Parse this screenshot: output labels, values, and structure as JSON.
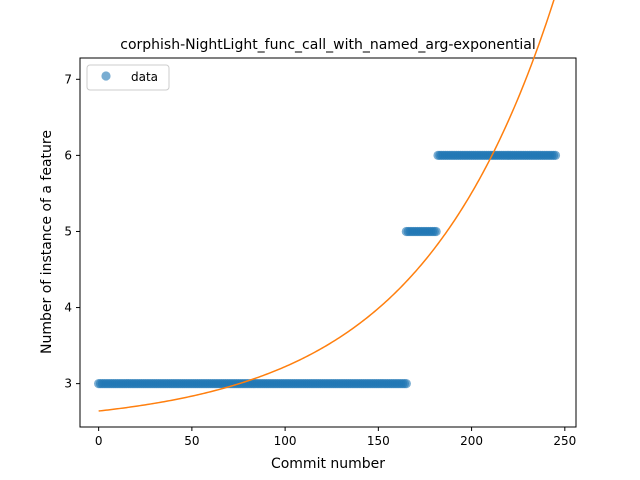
{
  "chart_data": {
    "type": "scatter",
    "title": "corphish-NightLight_func_call_with_named_arg-exponential",
    "xlabel": "Commit number",
    "ylabel": "Number of instance of a feature",
    "xlim": [
      -10,
      256
    ],
    "ylim": [
      2.43,
      7.28
    ],
    "x_ticks": [
      0,
      50,
      100,
      150,
      200,
      250
    ],
    "y_ticks": [
      3,
      4,
      5,
      6,
      7
    ],
    "grid": false,
    "legend": {
      "position": "top-left",
      "entries": [
        "data"
      ]
    },
    "series": [
      {
        "name": "data",
        "kind": "scatter",
        "color": "#1f77b4",
        "segments": [
          {
            "x_start": 0,
            "x_end": 165,
            "y": 3
          },
          {
            "x_start": 165,
            "x_end": 181,
            "y": 5
          },
          {
            "x_start": 182,
            "x_end": 245,
            "y": 6
          }
        ]
      },
      {
        "kind": "line",
        "color": "#ff7f0e",
        "model": "exponential",
        "a": 2.44,
        "b": 0.2,
        "c": 0.01365,
        "x_range": [
          0,
          245
        ]
      }
    ]
  }
}
